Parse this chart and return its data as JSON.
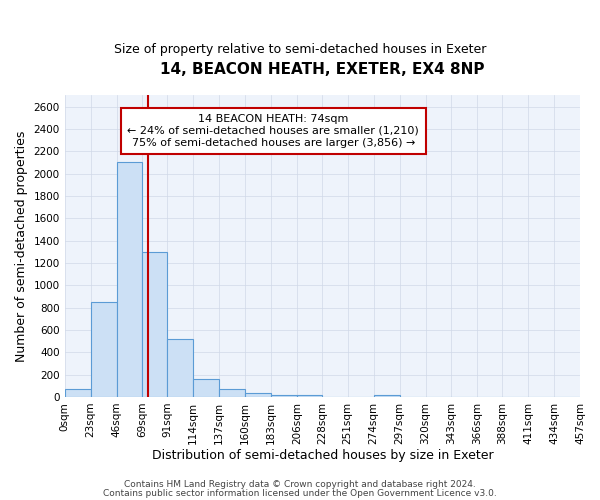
{
  "title": "14, BEACON HEATH, EXETER, EX4 8NP",
  "subtitle": "Size of property relative to semi-detached houses in Exeter",
  "xlabel": "Distribution of semi-detached houses by size in Exeter",
  "ylabel": "Number of semi-detached properties",
  "annotation_line1": "14 BEACON HEATH: 74sqm",
  "annotation_line2": "← 24% of semi-detached houses are smaller (1,210)",
  "annotation_line3": "75% of semi-detached houses are larger (3,856) →",
  "footer_line1": "Contains HM Land Registry data © Crown copyright and database right 2024.",
  "footer_line2": "Contains public sector information licensed under the Open Government Licence v3.0.",
  "bar_edges": [
    0,
    23,
    46,
    69,
    91,
    114,
    137,
    160,
    183,
    206,
    228,
    251,
    274,
    297,
    320,
    343,
    366,
    388,
    411,
    434,
    457
  ],
  "bar_heights": [
    75,
    850,
    2100,
    1300,
    520,
    160,
    75,
    35,
    20,
    20,
    0,
    0,
    20,
    0,
    0,
    0,
    0,
    0,
    0,
    0
  ],
  "bar_color": "#cce0f5",
  "bar_edge_color": "#5b9bd5",
  "red_line_x": 74,
  "red_line_color": "#c00000",
  "annotation_box_edge_color": "#c00000",
  "ylim": [
    0,
    2700
  ],
  "yticks": [
    0,
    200,
    400,
    600,
    800,
    1000,
    1200,
    1400,
    1600,
    1800,
    2000,
    2200,
    2400,
    2600
  ],
  "grid_color": "#d0d8e8",
  "bg_color": "#eef3fb",
  "title_fontsize": 11,
  "subtitle_fontsize": 9,
  "tick_fontsize": 7.5,
  "label_fontsize": 9,
  "footer_fontsize": 6.5
}
